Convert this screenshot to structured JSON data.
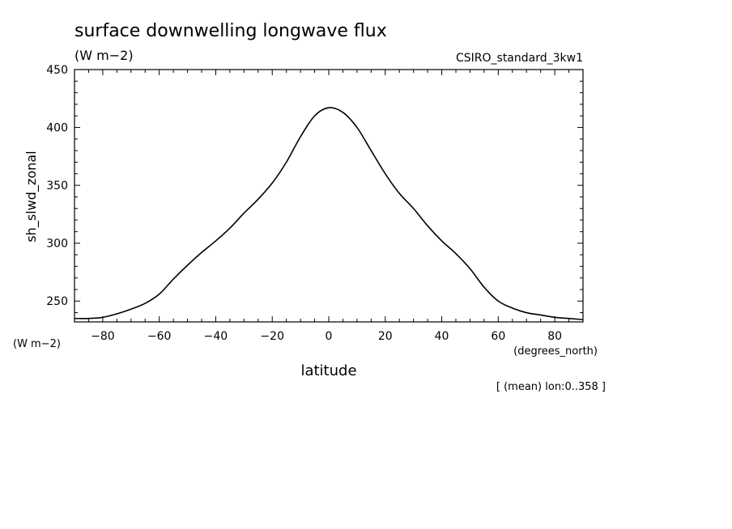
{
  "chart_data": {
    "type": "line",
    "title": "surface downwelling longwave flux",
    "units_label": "(W m−2)",
    "dataset_label": "CSIRO_standard_3kw1",
    "ylabel": "sh_slwd_zonal",
    "yunits_bottom": "(W m−2)",
    "xlabel": "latitude",
    "xunits": "(degrees_north)",
    "footnote": "[ (mean) lon:0..358 ]",
    "xlim": [
      -90,
      90
    ],
    "ylim": [
      232,
      450
    ],
    "xticks": [
      -80,
      -60,
      -40,
      -20,
      0,
      20,
      40,
      60,
      80
    ],
    "xtick_labels": [
      "−80",
      "−60",
      "−40",
      "−20",
      "0",
      "20",
      "40",
      "60",
      "80"
    ],
    "yticks": [
      250,
      300,
      350,
      400,
      450
    ],
    "ytick_labels": [
      "250",
      "300",
      "350",
      "400",
      "450"
    ],
    "grid": false,
    "series": [
      {
        "x": [
          -90,
          -85,
          -80,
          -75,
          -70,
          -65,
          -60,
          -55,
          -50,
          -45,
          -40,
          -35,
          -30,
          -25,
          -20,
          -15,
          -10,
          -5,
          0,
          5,
          10,
          15,
          20,
          25,
          30,
          35,
          40,
          45,
          50,
          55,
          60,
          65,
          70,
          75,
          80,
          85,
          90
        ],
        "y": [
          235,
          235,
          236,
          239,
          243,
          248,
          256,
          269,
          281,
          292,
          302,
          313,
          326,
          338,
          352,
          370,
          392,
          410,
          417,
          413,
          400,
          380,
          360,
          343,
          330,
          315,
          302,
          291,
          278,
          262,
          250,
          244,
          240,
          238,
          236,
          235,
          234
        ],
        "color": "#000000"
      }
    ]
  }
}
